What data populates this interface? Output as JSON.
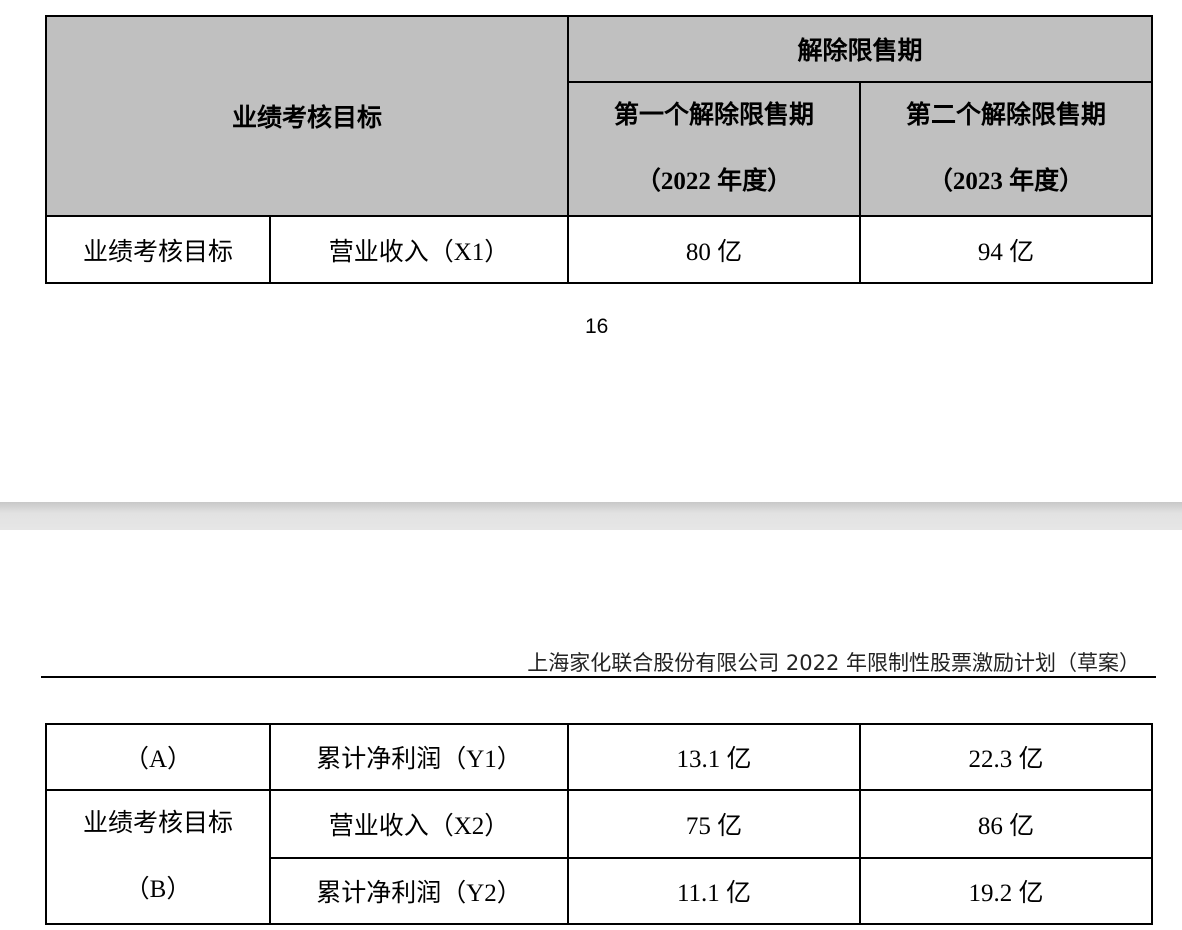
{
  "page1": {
    "table": {
      "header_main": "业绩考核目标",
      "header_group": "解除限售期",
      "period1": {
        "title": "第一个解除限售期",
        "year": "（2022 年度）"
      },
      "period2": {
        "title": "第二个解除限售期",
        "year": "（2023 年度）"
      },
      "rows": [
        {
          "group": "业绩考核目标",
          "metric": "营业收入（X1）",
          "v1": "80 亿",
          "v2": "94 亿"
        }
      ]
    },
    "page_number": "16"
  },
  "page2": {
    "running_header": "上海家化联合股份有限公司 2022 年限制性股票激励计划（草案）",
    "table": {
      "group_a": "（A）",
      "group_b_line1": "业绩考核目标",
      "group_b_line2": "（B）",
      "rows": [
        {
          "metric": "累计净利润（Y1）",
          "v1": "13.1 亿",
          "v2": "22.3 亿"
        },
        {
          "metric": "营业收入（X2）",
          "v1": "75 亿",
          "v2": "86 亿"
        },
        {
          "metric": "累计净利润（Y2）",
          "v1": "11.1 亿",
          "v2": "19.2 亿"
        }
      ]
    }
  }
}
